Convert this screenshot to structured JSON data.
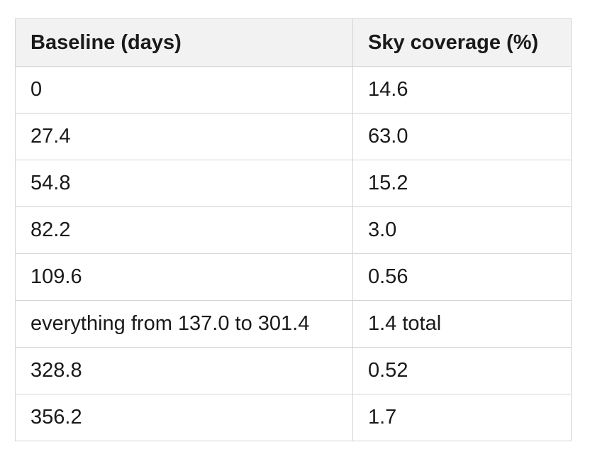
{
  "table": {
    "headers": [
      "Baseline (days)",
      "Sky coverage (%)"
    ],
    "rows": [
      [
        "0",
        "14.6"
      ],
      [
        "27.4",
        "63.0"
      ],
      [
        "54.8",
        "15.2"
      ],
      [
        "82.2",
        "3.0"
      ],
      [
        "109.6",
        "0.56"
      ],
      [
        "everything from 137.0 to 301.4",
        "1.4 total"
      ],
      [
        "328.8",
        "0.52"
      ],
      [
        "356.2",
        "1.7"
      ]
    ]
  }
}
